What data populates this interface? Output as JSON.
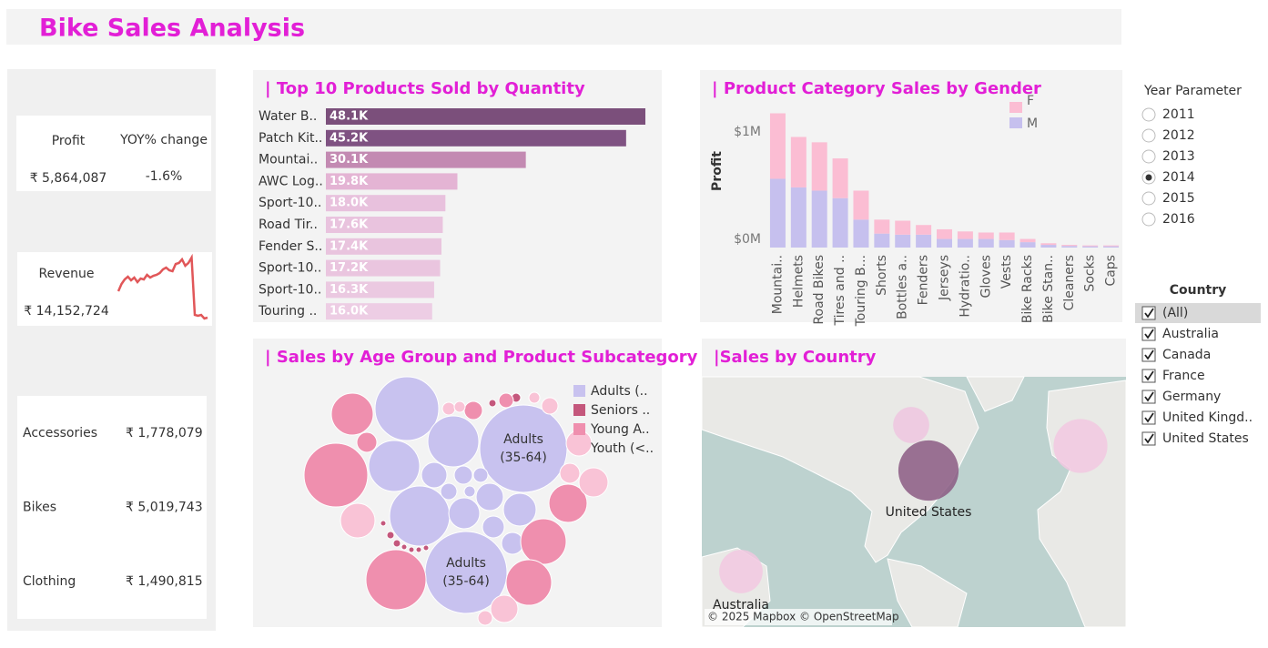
{
  "title": "Bike Sales Analysis",
  "kpis": {
    "profit_label": "Profit",
    "profit": "₹ 5,864,087",
    "yoy_label": "YOY% change",
    "yoy": "-1.6%",
    "revenue_label": "Revenue",
    "revenue": "₹ 14,152,724"
  },
  "category_sales": [
    {
      "name": "Accessories",
      "value": "₹ 1,778,079"
    },
    {
      "name": "Bikes",
      "value": "₹ 5,019,743"
    },
    {
      "name": "Clothing",
      "value": "₹ 1,490,815"
    }
  ],
  "year_parameter": {
    "title": "Year Parameter",
    "options": [
      "2011",
      "2012",
      "2013",
      "2014",
      "2015",
      "2016"
    ],
    "selected": "2014"
  },
  "country_filter": {
    "title": "Country",
    "options": [
      "(All)",
      "Australia",
      "Canada",
      "France",
      "Germany",
      "United Kingd..",
      "United States"
    ]
  },
  "chart_data": [
    {
      "type": "line",
      "color": "#e15759",
      "values": [
        32,
        40,
        45,
        48,
        44,
        47,
        42,
        46,
        45,
        50,
        47,
        49,
        50,
        52,
        56,
        58,
        55,
        54,
        62,
        63,
        67,
        60,
        63,
        69,
        6,
        5,
        6,
        2,
        3
      ]
    },
    {
      "type": "hbar",
      "title": "| Top 10 Products Sold by Quantity",
      "categories": [
        "Water B..",
        "Patch Kit..",
        "Mountai..",
        "AWC Log..",
        "Sport-10..",
        "Road Tir..",
        "Fender S..",
        "Sport-10..",
        "Sport-10..",
        "Touring .."
      ],
      "values": [
        48100,
        45200,
        30100,
        19800,
        18000,
        17600,
        17400,
        17200,
        16300,
        16000
      ],
      "value_labels": [
        "48.1K",
        "45.2K",
        "30.1K",
        "19.8K",
        "18.0K",
        "17.6K",
        "17.4K",
        "17.2K",
        "16.3K",
        "16.0K"
      ],
      "colors": [
        "#7b4f7b",
        "#7f5282",
        "#c38ab2",
        "#e4b4d4",
        "#e8c1dd",
        "#e9c3de",
        "#e9c4de",
        "#eac5df",
        "#ebc9e1",
        "#edcde4"
      ]
    },
    {
      "type": "stacked_bar",
      "title": "| Product Category Sales by Gender",
      "y_label": "Profit",
      "categories": [
        "Mountai..",
        "Helmets",
        "Road Bikes",
        "Tires and ..",
        "Touring B...",
        "Shorts",
        "Bottles a..",
        "Fenders",
        "Jerseys",
        "Hydratio..",
        "Gloves",
        "Vests",
        "Bike Racks",
        "Bike Stan..",
        "Cleaners",
        "Socks",
        "Caps"
      ],
      "series": [
        {
          "name": "F",
          "color": "#fbbdd3",
          "values": [
            610000,
            470000,
            450000,
            370000,
            270000,
            130000,
            130000,
            90000,
            90000,
            70000,
            60000,
            70000,
            30000,
            15000,
            10000,
            8000,
            8000
          ]
        },
        {
          "name": "M",
          "color": "#c6c0ee",
          "values": [
            640000,
            560000,
            530000,
            460000,
            260000,
            130000,
            120000,
            120000,
            80000,
            80000,
            80000,
            70000,
            50000,
            25000,
            15000,
            12000,
            12000
          ]
        }
      ],
      "ylim": [
        0,
        1300000
      ],
      "yticks": [
        {
          "value": 0,
          "label": "$0M"
        },
        {
          "value": 1000000,
          "label": "$1M"
        }
      ]
    },
    {
      "type": "bubble",
      "title": "| Sales by Age Group and Product Subcategory",
      "series": [
        {
          "name": "Adults (..",
          "color": "#c8c2ef",
          "values": [
            122500,
            78400,
            78400,
            230400,
            108900,
            202500,
            28900,
            32400,
            22500,
            19600,
            10000,
            8100,
            6400,
            14400,
            14400,
            3600
          ],
          "labels": {
            "3": [
              "Adults",
              "(35-64)"
            ],
            "5": [
              "Adults",
              "(35-64)"
            ]
          }
        },
        {
          "name": "Seniors ..",
          "color": "#c4577c",
          "values": [
            1600,
            1600,
            900,
            900,
            900,
            900,
            900,
            2500,
            1600
          ]
        },
        {
          "name": "Young A..",
          "color": "#ef8fae",
          "values": [
            122500,
            108900,
            52900,
            62500,
            62500,
            44100,
            12100,
            6400,
            10000
          ]
        },
        {
          "name": "Youth (<..",
          "color": "#f9c3d6",
          "values": [
            36100,
            25600,
            22500,
            19600,
            12100,
            8100,
            4900,
            6400,
            3600,
            3600
          ]
        }
      ]
    },
    {
      "type": "map",
      "title": "|Sales by Country",
      "attribution": "© 2025 Mapbox © OpenStreetMap",
      "points": [
        {
          "name": "United States",
          "value": 5000000,
          "color": "#8b5a83"
        },
        {
          "name": null,
          "value": 1800000,
          "color": "#eec6df"
        },
        {
          "name": null,
          "value": 4000000,
          "color": "#f2c8e0"
        },
        {
          "name": "Australia",
          "value": 2600000,
          "color": "#f2c8e0"
        }
      ]
    }
  ]
}
